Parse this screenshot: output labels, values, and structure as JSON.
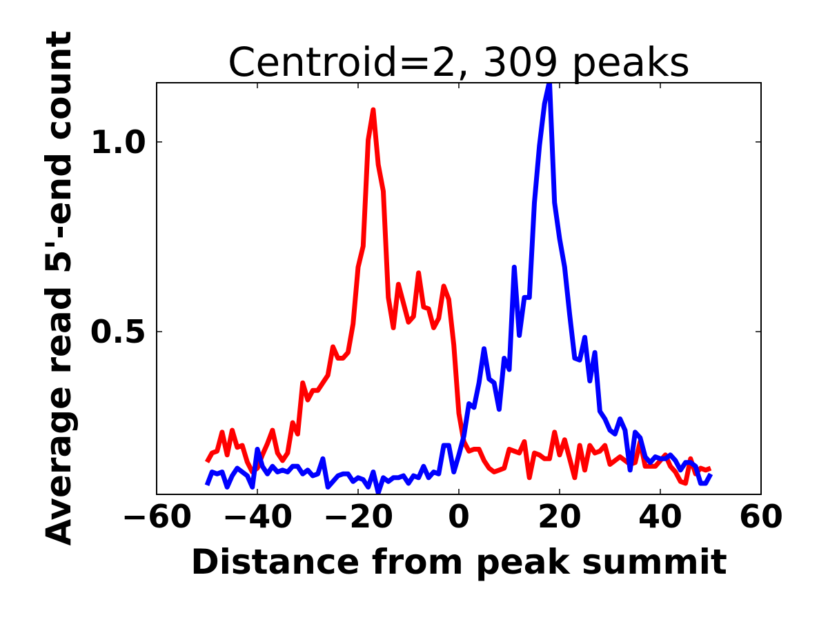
{
  "chart_data": {
    "type": "line",
    "title": "Centroid=2, 309 peaks",
    "xlabel": "Distance from peak summit",
    "ylabel": "Average read 5'-end count",
    "xlim": [
      -60,
      60
    ],
    "ylim": [
      0.071,
      1.156
    ],
    "xticks": [
      -60,
      -40,
      -20,
      0,
      20,
      40,
      60
    ],
    "xtick_labels": [
      "−60",
      "−40",
      "−20",
      "0",
      "20",
      "40",
      "60"
    ],
    "yticks": [
      0.5,
      1.0
    ],
    "ytick_labels": [
      "0.5",
      "1.0"
    ],
    "grid": false,
    "x": [
      -50,
      -49,
      -48,
      -47,
      -46,
      -45,
      -44,
      -43,
      -42,
      -41,
      -40,
      -39,
      -38,
      -37,
      -36,
      -35,
      -34,
      -33,
      -32,
      -31,
      -30,
      -29,
      -28,
      -27,
      -26,
      -25,
      -24,
      -23,
      -22,
      -21,
      -20,
      -19,
      -18,
      -17,
      -16,
      -15,
      -14,
      -13,
      -12,
      -11,
      -10,
      -9,
      -8,
      -7,
      -6,
      -5,
      -4,
      -3,
      -2,
      -1,
      0,
      1,
      2,
      3,
      4,
      5,
      6,
      7,
      8,
      9,
      10,
      11,
      12,
      13,
      14,
      15,
      16,
      17,
      18,
      19,
      20,
      21,
      22,
      23,
      24,
      25,
      26,
      27,
      28,
      29,
      30,
      31,
      32,
      33,
      34,
      35,
      36,
      37,
      38,
      39,
      40,
      41,
      42,
      43,
      44,
      45,
      46,
      47,
      48,
      49,
      50
    ],
    "series": [
      {
        "name": "red",
        "color": "#ff0000",
        "values": [
          0.156,
          0.18,
          0.185,
          0.235,
          0.175,
          0.24,
          0.195,
          0.2,
          0.156,
          0.13,
          0.14,
          0.175,
          0.205,
          0.24,
          0.18,
          0.16,
          0.18,
          0.26,
          0.23,
          0.365,
          0.32,
          0.345,
          0.345,
          0.365,
          0.385,
          0.46,
          0.43,
          0.43,
          0.445,
          0.52,
          0.67,
          0.725,
          1.005,
          1.085,
          0.94,
          0.87,
          0.59,
          0.51,
          0.625,
          0.575,
          0.525,
          0.54,
          0.655,
          0.565,
          0.56,
          0.51,
          0.535,
          0.62,
          0.585,
          0.465,
          0.285,
          0.21,
          0.185,
          0.19,
          0.19,
          0.16,
          0.14,
          0.13,
          0.135,
          0.14,
          0.19,
          0.185,
          0.18,
          0.21,
          0.115,
          0.18,
          0.175,
          0.165,
          0.165,
          0.235,
          0.175,
          0.215,
          0.165,
          0.115,
          0.2,
          0.135,
          0.2,
          0.18,
          0.185,
          0.2,
          0.15,
          0.16,
          0.17,
          0.16,
          0.15,
          0.155,
          0.21,
          0.145,
          0.145,
          0.145,
          0.16,
          0.175,
          0.145,
          0.13,
          0.105,
          0.1,
          0.165,
          0.125,
          0.14,
          0.135,
          0.14
        ]
      },
      {
        "name": "blue",
        "color": "#0000ff",
        "values": [
          0.095,
          0.13,
          0.125,
          0.13,
          0.09,
          0.12,
          0.14,
          0.13,
          0.12,
          0.09,
          0.19,
          0.145,
          0.125,
          0.145,
          0.13,
          0.135,
          0.13,
          0.145,
          0.145,
          0.125,
          0.135,
          0.12,
          0.125,
          0.165,
          0.09,
          0.105,
          0.12,
          0.125,
          0.125,
          0.105,
          0.115,
          0.11,
          0.09,
          0.13,
          0.075,
          0.115,
          0.105,
          0.115,
          0.115,
          0.12,
          0.1,
          0.12,
          0.115,
          0.145,
          0.115,
          0.13,
          0.125,
          0.2,
          0.2,
          0.13,
          0.175,
          0.225,
          0.31,
          0.3,
          0.365,
          0.455,
          0.375,
          0.365,
          0.295,
          0.43,
          0.4,
          0.67,
          0.49,
          0.59,
          0.59,
          0.84,
          0.99,
          1.1,
          1.16,
          0.84,
          0.745,
          0.67,
          0.545,
          0.43,
          0.425,
          0.485,
          0.37,
          0.445,
          0.29,
          0.27,
          0.24,
          0.23,
          0.27,
          0.24,
          0.135,
          0.235,
          0.22,
          0.17,
          0.155,
          0.17,
          0.165,
          0.165,
          0.175,
          0.16,
          0.135,
          0.155,
          0.155,
          0.145,
          0.1,
          0.1,
          0.125
        ]
      }
    ]
  }
}
